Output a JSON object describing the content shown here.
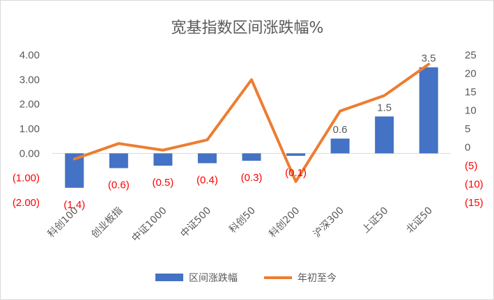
{
  "chart_data": {
    "type": "bar+line",
    "title": "宽基指数区间涨跌幅%",
    "categories": [
      "科创100",
      "创业板指",
      "中证1000",
      "中证500",
      "科创50",
      "科创200",
      "沪深300",
      "上证50",
      "北证50"
    ],
    "series": [
      {
        "name": "区间涨跌幅",
        "type": "bar",
        "axis": "left",
        "color": "#4472C4",
        "values": [
          -1.4,
          -0.6,
          -0.5,
          -0.4,
          -0.3,
          -0.1,
          0.6,
          1.5,
          3.5
        ],
        "data_labels": [
          "(1.4)",
          "(0.6)",
          "(0.5)",
          "(0.4)",
          "(0.3)",
          "(0.1)",
          "0.6",
          "1.5",
          "3.5"
        ]
      },
      {
        "name": "年初至今",
        "type": "line",
        "axis": "right",
        "color": "#ED7D31",
        "values": [
          -3.2,
          1.0,
          -0.8,
          2.0,
          18.3,
          -9.3,
          9.8,
          14.0,
          22.5
        ]
      }
    ],
    "left_axis": {
      "ylim": [
        -2,
        4
      ],
      "ticks": [
        4,
        3,
        2,
        1,
        0,
        -1,
        -2
      ],
      "tick_labels": [
        "4.00",
        "3.00",
        "2.00",
        "1.00",
        "0.00",
        "(1.00)",
        "(2.00)"
      ]
    },
    "right_axis": {
      "ylim": [
        -15,
        25
      ],
      "ticks": [
        25,
        20,
        15,
        10,
        5,
        0,
        -5,
        -10,
        -15
      ],
      "tick_labels": [
        "25",
        "20",
        "15",
        "10",
        "5",
        "0",
        "(5)",
        "(10)",
        "(15)"
      ]
    },
    "negative_color": "#FF0000",
    "text_color": "#595959",
    "grid": false,
    "legend_position": "bottom"
  }
}
